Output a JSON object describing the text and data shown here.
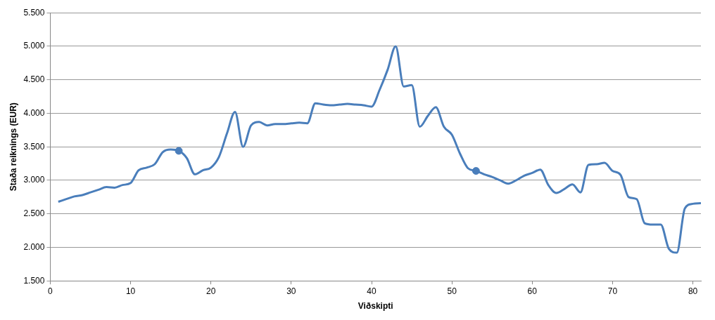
{
  "chart_data": {
    "type": "line",
    "xlabel": "Viðskipti",
    "ylabel": "Staða reiknings (EUR)",
    "xlim": [
      0,
      81
    ],
    "xticks": [
      0,
      10,
      20,
      30,
      40,
      50,
      60,
      70,
      80
    ],
    "ylim": [
      1500,
      5500
    ],
    "yticks": [
      {
        "value": 1500,
        "label": "1.500"
      },
      {
        "value": 2000,
        "label": "2.000"
      },
      {
        "value": 2500,
        "label": "2.500"
      },
      {
        "value": 3000,
        "label": "3.000"
      },
      {
        "value": 3500,
        "label": "3.500"
      },
      {
        "value": 4000,
        "label": "4.000"
      },
      {
        "value": 4500,
        "label": "4.500"
      },
      {
        "value": 5000,
        "label": "5.000"
      },
      {
        "value": 5500,
        "label": "5.500"
      }
    ],
    "grid": "y",
    "legend": false,
    "series": [
      {
        "color": "#4a7ebb",
        "marker": "none",
        "x": [
          1,
          2,
          3,
          4,
          5,
          6,
          7,
          8,
          9,
          10,
          11,
          12,
          13,
          14,
          15,
          16,
          17,
          18,
          19,
          20,
          21,
          22,
          23,
          24,
          25,
          26,
          27,
          28,
          29,
          30,
          31,
          32,
          33,
          34,
          35,
          36,
          37,
          38,
          39,
          40,
          41,
          42,
          43,
          44,
          45,
          46,
          47,
          48,
          49,
          50,
          51,
          52,
          53,
          54,
          55,
          56,
          57,
          58,
          59,
          60,
          61,
          62,
          63,
          64,
          65,
          66,
          67,
          68,
          69,
          70,
          71,
          72,
          73,
          74,
          75,
          76,
          77,
          78,
          79,
          80,
          81
        ],
        "values": [
          2680,
          2720,
          2760,
          2780,
          2820,
          2860,
          2900,
          2890,
          2930,
          2960,
          3150,
          3190,
          3240,
          3420,
          3460,
          3440,
          3330,
          3090,
          3150,
          3190,
          3350,
          3700,
          4020,
          3500,
          3820,
          3870,
          3820,
          3840,
          3840,
          3850,
          3860,
          3850,
          4150,
          4130,
          4120,
          4130,
          4140,
          4130,
          4120,
          4100,
          4350,
          4650,
          5000,
          4400,
          4420,
          3800,
          3960,
          4090,
          3800,
          3680,
          3400,
          3180,
          3140,
          3090,
          3050,
          3000,
          2950,
          3000,
          3070,
          3110,
          3160,
          2930,
          2810,
          2870,
          2940,
          2820,
          3230,
          3240,
          3260,
          3140,
          3080,
          2750,
          2720,
          2360,
          2340,
          2340,
          1980,
          1920,
          2580,
          2650,
          2660
        ]
      },
      {
        "type": "scatter",
        "color": "#4a7ebb",
        "marker": "circle",
        "x": [
          16,
          53
        ],
        "values": [
          3440,
          3140
        ]
      }
    ]
  }
}
